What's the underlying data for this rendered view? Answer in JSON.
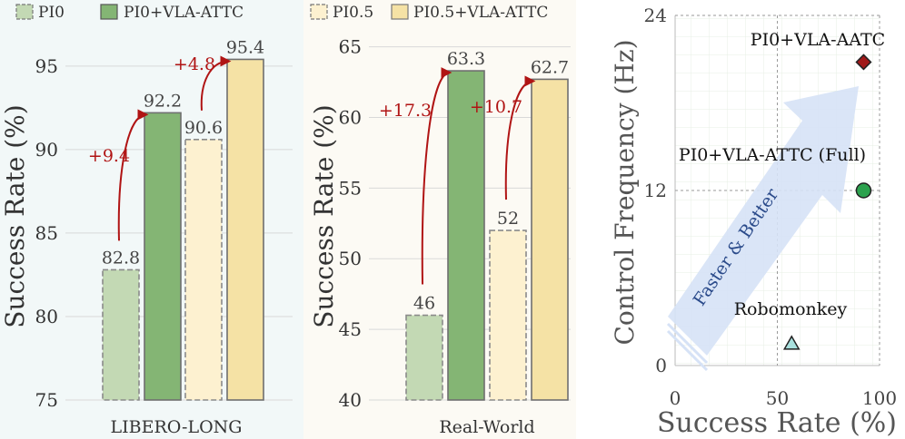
{
  "colors": {
    "pi0": "#c3d9b4",
    "pi0_vla": "#84b574",
    "pi05": "#fdf1d0",
    "pi05_vla": "#f5e2a5",
    "delta": "#b01414",
    "axis_text": "#333333",
    "bar_edge": "#777777",
    "arrow_fill": "#d6e2f6",
    "arrow_text": "#2a4a8a",
    "robomonkey": "#a9e1de",
    "full": "#2ca24e",
    "aatc": "#a11a1a"
  },
  "legend_left": {
    "items": [
      {
        "label": "PI0",
        "style": "dashed",
        "color_key": "pi0"
      },
      {
        "label": "PI0+VLA-ATTC",
        "style": "solid",
        "color_key": "pi0_vla"
      }
    ]
  },
  "legend_mid": {
    "items": [
      {
        "label": "PI0.5",
        "style": "dashed",
        "color_key": "pi05"
      },
      {
        "label": "PI0.5+VLA-ATTC",
        "style": "solid",
        "color_key": "pi05_vla"
      }
    ]
  },
  "chart_data": [
    {
      "id": "libero",
      "type": "bar",
      "ylabel": "Success  Rate (%)",
      "xlabel": "LIBERO-LONG",
      "ylim": [
        75,
        97
      ],
      "yticks": [
        75,
        80,
        85,
        90,
        95
      ],
      "values": [
        82.8,
        92.2,
        90.6,
        95.4
      ],
      "value_labels": [
        "82.8",
        "92.2",
        "90.6",
        "95.4"
      ],
      "color_keys": [
        "pi0",
        "pi0_vla",
        "pi05",
        "pi05_vla"
      ],
      "dashed": [
        true,
        false,
        true,
        false
      ],
      "deltas": [
        {
          "label": "+9.4",
          "from": 0,
          "to": 1
        },
        {
          "label": "+4.8",
          "from": 2,
          "to": 3
        }
      ]
    },
    {
      "id": "realworld",
      "type": "bar",
      "ylabel": "Success  Rate (%)",
      "xlabel": "Real-World",
      "ylim": [
        40,
        66
      ],
      "yticks": [
        40,
        45,
        50,
        55,
        60,
        65
      ],
      "values": [
        46,
        63.3,
        52,
        62.7
      ],
      "value_labels": [
        "46",
        "63.3",
        "52",
        "62.7"
      ],
      "color_keys": [
        "pi0",
        "pi0_vla",
        "pi05",
        "pi05_vla"
      ],
      "dashed": [
        true,
        false,
        true,
        false
      ],
      "deltas": [
        {
          "label": "+17.3",
          "from": 0,
          "to": 1
        },
        {
          "label": "+10.7",
          "from": 2,
          "to": 3
        }
      ]
    },
    {
      "id": "freq",
      "type": "scatter",
      "xlabel": "Success Rate (%)",
      "ylabel": "Control Frequency (Hz)",
      "xlim": [
        0,
        100
      ],
      "ylim": [
        0,
        24
      ],
      "xticks": [
        0,
        50,
        100
      ],
      "yticks": [
        0,
        12,
        24
      ],
      "arrow_text": "Faster & Better",
      "points": [
        {
          "name": "Robomonkey",
          "x": 57,
          "y": 1.5,
          "marker": "triangle",
          "color_key": "robomonkey"
        },
        {
          "name": "PI0+VLA-ATTC (Full)",
          "x": 92.2,
          "y": 12,
          "marker": "circle",
          "color_key": "full"
        },
        {
          "name": "PI0+VLA-AATC",
          "x": 92.2,
          "y": 20.8,
          "marker": "diamond",
          "color_key": "aatc"
        }
      ]
    }
  ]
}
